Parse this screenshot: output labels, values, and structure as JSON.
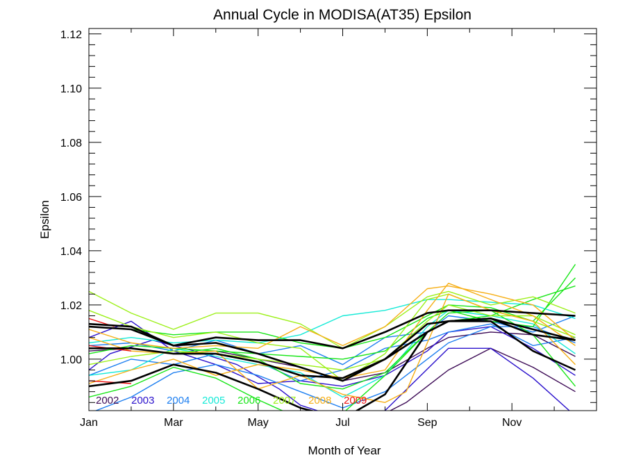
{
  "chart_data": {
    "type": "line",
    "title": "Annual Cycle in MODISA(AT35) Epsilon",
    "xlabel": "Month of Year",
    "ylabel": "Epsilon",
    "xlim": [
      1,
      13
    ],
    "ylim": [
      0.981,
      1.122
    ],
    "x_ticks": [
      1,
      3,
      5,
      7,
      9,
      11
    ],
    "x_tick_labels": [
      "Jan",
      "Mar",
      "May",
      "Jul",
      "Sep",
      "Nov"
    ],
    "y_ticks": [
      1.0,
      1.02,
      1.04,
      1.06,
      1.08,
      1.1,
      1.12
    ],
    "y_tick_labels": [
      "1.00",
      "1.02",
      "1.04",
      "1.06",
      "1.08",
      "1.10",
      "1.12"
    ],
    "legend_position": "bottom-left",
    "legend": [
      {
        "label": "2002",
        "color": "#3c0a55"
      },
      {
        "label": "2003",
        "color": "#2a10cc"
      },
      {
        "label": "2004",
        "color": "#1c7ef0"
      },
      {
        "label": "2005",
        "color": "#16ead7"
      },
      {
        "label": "2006",
        "color": "#18e618"
      },
      {
        "label": "2007",
        "color": "#9cf018"
      },
      {
        "label": "2008",
        "color": "#f6ae14"
      },
      {
        "label": "2009",
        "color": "#ee1010"
      }
    ],
    "series": [
      {
        "color": "#3c0a55",
        "x": [
          8,
          8.5,
          9,
          9.5,
          10.5,
          11.5,
          12.5
        ],
        "y": [
          0.98,
          0.984,
          0.99,
          0.996,
          1.004,
          0.997,
          0.988
        ]
      },
      {
        "color": "#3c0a55",
        "x": [
          1,
          2,
          3,
          4,
          5,
          6,
          7,
          8,
          9,
          9.5,
          10.5,
          11.5,
          12.5
        ],
        "y": [
          1.003,
          1.004,
          1.002,
          1.003,
          1.0,
          0.997,
          0.992,
          0.995,
          1.004,
          1.008,
          1.01,
          1.009,
          1.001
        ]
      },
      {
        "color": "#2a10cc",
        "x": [
          1,
          2,
          3,
          4,
          5,
          6,
          7,
          8,
          9,
          9.5,
          10.5,
          11.5,
          12.5
        ],
        "y": [
          1.008,
          1.014,
          1.003,
          0.998,
          0.991,
          0.992,
          0.99,
          0.994,
          1.003,
          1.01,
          1.012,
          1.004,
          0.994
        ]
      },
      {
        "color": "#2a10cc",
        "x": [
          1,
          1.5,
          2.5,
          3.5,
          4.5,
          5.5,
          6,
          7,
          7.5,
          8,
          9.5,
          10.5,
          11.5,
          12.5
        ],
        "y": [
          0.996,
          1.002,
          1.007,
          1.003,
          0.998,
          0.989,
          0.983,
          0.978,
          0.98,
          0.981,
          1.004,
          1.004,
          0.993,
          0.979
        ]
      },
      {
        "color": "#1c7ef0",
        "x": [
          1,
          2,
          3,
          4,
          5,
          6,
          7,
          8,
          9,
          9.5,
          10.5,
          11.5,
          12.5
        ],
        "y": [
          0.994,
          1.0,
          0.998,
          1.002,
          0.999,
          0.992,
          0.996,
          1.004,
          1.007,
          1.01,
          1.013,
          1.005,
          1.008
        ]
      },
      {
        "color": "#1c7ef0",
        "x": [
          1,
          2,
          3,
          4,
          5,
          6,
          7,
          8,
          9,
          9.5,
          10.5,
          11.5,
          12.5
        ],
        "y": [
          0.98,
          0.986,
          0.995,
          0.998,
          0.994,
          0.988,
          0.982,
          0.988,
          1.0,
          1.006,
          1.012,
          1.012,
          1.006
        ]
      },
      {
        "color": "#1c7ef0",
        "x": [
          1,
          2,
          3,
          4,
          5,
          6,
          7,
          8,
          9,
          9.5,
          10.5,
          11.5,
          12.5
        ],
        "y": [
          1.005,
          1.006,
          1.003,
          1.007,
          1.002,
          1.005,
          0.998,
          1.008,
          1.01,
          1.016,
          1.014,
          1.01,
          1.016
        ]
      },
      {
        "color": "#16ead7",
        "x": [
          1,
          2,
          3,
          4,
          5,
          6,
          7,
          8,
          9,
          9.5,
          10.5,
          11.5,
          12.5
        ],
        "y": [
          1.006,
          1.008,
          1.006,
          1.007,
          1.006,
          1.009,
          1.016,
          1.018,
          1.022,
          1.022,
          1.021,
          1.02,
          1.015
        ]
      },
      {
        "color": "#16ead7",
        "x": [
          1,
          2,
          3,
          4,
          5,
          6,
          7,
          8,
          9,
          9.5,
          10.5,
          11.5,
          12.5
        ],
        "y": [
          0.994,
          0.996,
          1.004,
          1.001,
          0.998,
          0.995,
          0.986,
          0.994,
          1.012,
          1.018,
          1.016,
          1.013,
          1.002
        ]
      },
      {
        "color": "#18e618",
        "x": [
          1,
          2,
          3,
          4,
          5,
          6,
          7,
          8,
          9,
          9.5,
          10.5,
          11.5,
          12.5
        ],
        "y": [
          1.002,
          1.005,
          1.004,
          1.003,
          1.002,
          1.001,
          1.0,
          1.003,
          1.015,
          1.018,
          1.014,
          1.012,
          1.035
        ]
      },
      {
        "color": "#18e618",
        "x": [
          1,
          2,
          3,
          4,
          5,
          6,
          7,
          8,
          9,
          9.5,
          10.5,
          11.5,
          12.5
        ],
        "y": [
          1.012,
          1.011,
          1.009,
          1.01,
          1.01,
          1.006,
          1.004,
          1.008,
          1.016,
          1.02,
          1.019,
          1.014,
          1.03
        ]
      },
      {
        "color": "#18e618",
        "x": [
          1,
          2,
          3,
          4,
          5,
          6,
          7,
          8,
          9,
          9.5,
          10.5,
          11.5,
          12.5
        ],
        "y": [
          0.986,
          0.99,
          0.997,
          0.993,
          0.985,
          0.978,
          0.98,
          0.994,
          1.01,
          1.014,
          1.016,
          1.022,
          1.027
        ]
      },
      {
        "color": "#18e618",
        "x": [
          1,
          2,
          3,
          4,
          5,
          6,
          7,
          8,
          9,
          9.5,
          10.5,
          11.5,
          12.5
        ],
        "y": [
          1.004,
          1.004,
          1.002,
          1.004,
          1.0,
          0.991,
          0.989,
          0.995,
          1.01,
          1.017,
          1.018,
          1.009,
          0.99
        ]
      },
      {
        "color": "#9cf018",
        "x": [
          1,
          2,
          3,
          4,
          5,
          6,
          7,
          8,
          9,
          9.5,
          10.5,
          11.5,
          12.5
        ],
        "y": [
          1.025,
          1.017,
          1.011,
          1.017,
          1.017,
          1.013,
          1.004,
          1.012,
          1.023,
          1.025,
          1.02,
          1.023,
          1.017
        ]
      },
      {
        "color": "#9cf018",
        "x": [
          1,
          2,
          3,
          4,
          5,
          6,
          7,
          8,
          9,
          9.5,
          10.5,
          11.5,
          12.5
        ],
        "y": [
          1.018,
          1.012,
          1.008,
          1.01,
          1.006,
          1.004,
          0.992,
          1.002,
          1.022,
          1.024,
          1.018,
          1.014,
          1.008
        ]
      },
      {
        "color": "#9cf018",
        "x": [
          1,
          2,
          3,
          4,
          5,
          6,
          7,
          8,
          9,
          9.5,
          10.5,
          11.5,
          12.5
        ],
        "y": [
          0.998,
          1.001,
          1.003,
          1.002,
          1.0,
          0.998,
          0.996,
          1.0,
          1.014,
          1.02,
          1.016,
          1.016,
          1.009
        ]
      },
      {
        "color": "#f6ae14",
        "x": [
          1,
          2,
          3,
          4,
          5,
          6,
          7,
          8,
          9,
          9.5,
          10.5,
          11.5,
          12.5
        ],
        "y": [
          1.011,
          1.006,
          1.004,
          1.005,
          1.004,
          1.012,
          1.005,
          1.012,
          1.026,
          1.027,
          1.024,
          1.02,
          1.007
        ]
      },
      {
        "color": "#f6ae14",
        "x": [
          1,
          2,
          3,
          4,
          5,
          6,
          7,
          8,
          9,
          9.5,
          10.5,
          11.5,
          12.5
        ],
        "y": [
          0.991,
          0.996,
          1.0,
          0.994,
          0.998,
          0.996,
          0.993,
          0.996,
          1.018,
          1.028,
          1.022,
          1.016,
          1.005
        ]
      },
      {
        "color": "#f6ae14",
        "x": [
          1,
          2,
          3,
          4,
          5,
          6,
          7,
          8,
          8.5,
          9,
          9.5,
          10.5,
          11.5,
          12.5
        ],
        "y": [
          1.008,
          1.003,
          1.002,
          1.003,
          0.989,
          0.994,
          0.987,
          0.984,
          0.988,
          1.006,
          1.024,
          1.018,
          1.014,
          0.998
        ]
      },
      {
        "color": "#ee1010",
        "x": [
          1,
          2
        ],
        "y": [
          1.005,
          1.003
        ]
      },
      {
        "color": "#ee1010",
        "x": [
          1,
          1.6
        ],
        "y": [
          1.015,
          1.012
        ]
      },
      {
        "color": "#ee1010",
        "x": [
          1,
          2
        ],
        "y": [
          0.992,
          0.991
        ]
      },
      {
        "color": "#000000",
        "bold": true,
        "x": [
          1,
          2,
          3,
          4,
          5,
          6,
          7,
          8,
          9,
          9.5,
          10.5,
          11.5,
          12.5
        ],
        "y": [
          1.012,
          1.011,
          1.005,
          1.008,
          1.007,
          1.007,
          1.004,
          1.01,
          1.017,
          1.018,
          1.018,
          1.017,
          1.016
        ]
      },
      {
        "color": "#000000",
        "bold": true,
        "x": [
          1,
          2,
          3,
          4,
          5,
          6,
          7,
          8,
          9,
          9.5,
          10.5,
          11.5,
          12.5
        ],
        "y": [
          1.013,
          1.012,
          1.005,
          1.006,
          1.002,
          0.997,
          0.992,
          1.0,
          1.013,
          1.014,
          1.015,
          1.009,
          1.007
        ]
      },
      {
        "color": "#000000",
        "bold": true,
        "x": [
          1,
          2,
          3,
          4,
          5,
          6,
          7,
          8,
          9,
          9.5,
          10.5,
          11.5,
          12.5
        ],
        "y": [
          1.004,
          1.004,
          1.002,
          1.002,
          0.999,
          0.994,
          0.993,
          1.0,
          1.01,
          1.014,
          1.015,
          1.011,
          1.007
        ]
      },
      {
        "color": "#000000",
        "bold": true,
        "x": [
          1,
          2,
          3,
          4,
          5,
          6,
          7,
          8,
          9,
          9.5,
          10.5,
          11.5,
          12.5
        ],
        "y": [
          0.99,
          0.992,
          0.998,
          0.995,
          0.989,
          0.982,
          0.978,
          0.987,
          1.01,
          1.014,
          1.014,
          1.003,
          0.996
        ]
      }
    ]
  }
}
